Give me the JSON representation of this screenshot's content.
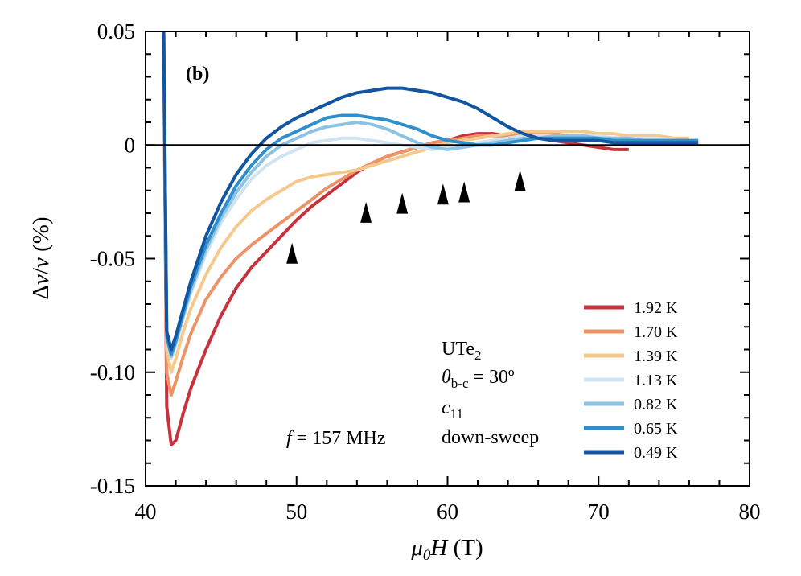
{
  "chart_data": {
    "type": "line",
    "panel_label": "(b)",
    "xlabel": "μ₀H (T)",
    "ylabel": "Δv/v (%)",
    "xlim": [
      40,
      80
    ],
    "ylim": [
      -0.15,
      0.05
    ],
    "x_ticks": [
      40,
      50,
      60,
      70,
      80
    ],
    "x_tick_labels": [
      "40",
      "50",
      "60",
      "70",
      "80"
    ],
    "y_ticks": [
      0.05,
      0,
      -0.05,
      -0.1,
      -0.15
    ],
    "y_tick_labels": [
      "0.05",
      "0",
      "-0.05",
      "-0.10",
      "-0.15"
    ],
    "zero_line": true,
    "grid": false,
    "legend_position": "lower-right",
    "annotations": {
      "material": "UTe",
      "material_sub": "2",
      "theta_symbol": "θ",
      "theta_sub": "b-c",
      "theta_value": " = 30º",
      "mode_symbol": "c",
      "mode_sub": "11",
      "sweep": "down-sweep",
      "freq_symbol": "f",
      "freq_value": " = 157 MHz"
    },
    "arrow_markers": [
      {
        "x": 49.7,
        "y": -0.043
      },
      {
        "x": 54.6,
        "y": -0.025
      },
      {
        "x": 57.0,
        "y": -0.021
      },
      {
        "x": 59.7,
        "y": -0.017
      },
      {
        "x": 61.1,
        "y": -0.016
      },
      {
        "x": 64.8,
        "y": -0.011
      }
    ],
    "series": [
      {
        "name": "1.92 K",
        "color": "#c8323c",
        "x": [
          41.2,
          41.4,
          41.7,
          42.0,
          42.5,
          43.0,
          44.0,
          45.0,
          46.0,
          47.0,
          48.0,
          49.0,
          50.0,
          51.0,
          52.0,
          53.0,
          54.0,
          55.0,
          56.0,
          57.0,
          58.0,
          59.0,
          60.0,
          61.0,
          62.0,
          63.0,
          64.0,
          65.0,
          66.0,
          67.0,
          68.0,
          69.0,
          70.0,
          71.0,
          72.0
        ],
        "y": [
          0.05,
          -0.115,
          -0.132,
          -0.13,
          -0.118,
          -0.107,
          -0.09,
          -0.075,
          -0.063,
          -0.054,
          -0.047,
          -0.04,
          -0.033,
          -0.027,
          -0.022,
          -0.017,
          -0.012,
          -0.008,
          -0.005,
          -0.003,
          -0.001,
          0.001,
          0.002,
          0.004,
          0.005,
          0.005,
          0.004,
          0.003,
          0.003,
          0.002,
          0.001,
          0.0,
          -0.001,
          -0.002,
          -0.002
        ]
      },
      {
        "name": "1.70 K",
        "color": "#ec9468",
        "x": [
          41.2,
          41.4,
          41.7,
          42.0,
          42.5,
          43.0,
          44.0,
          45.0,
          46.0,
          47.0,
          48.0,
          49.0,
          50.0,
          51.0,
          52.0,
          53.0,
          54.0,
          55.0,
          56.0,
          57.0,
          58.0,
          59.0,
          60.0,
          61.0,
          62.0,
          63.0,
          64.0,
          65.0,
          66.0,
          67.0,
          68.0,
          69.0,
          70.0,
          71.0,
          72.0
        ],
        "y": [
          0.05,
          -0.1,
          -0.11,
          -0.104,
          -0.093,
          -0.083,
          -0.068,
          -0.058,
          -0.05,
          -0.044,
          -0.039,
          -0.034,
          -0.029,
          -0.024,
          -0.019,
          -0.015,
          -0.011,
          -0.008,
          -0.005,
          -0.003,
          -0.001,
          0.001,
          0.002,
          0.003,
          0.004,
          0.004,
          0.004,
          0.005,
          0.005,
          0.005,
          0.004,
          0.004,
          0.003,
          0.002,
          0.002
        ]
      },
      {
        "name": "1.39 K",
        "color": "#f5c98d",
        "x": [
          41.2,
          41.4,
          41.7,
          42.0,
          42.5,
          43.0,
          44.0,
          45.0,
          46.0,
          47.0,
          48.0,
          49.0,
          50.0,
          51.0,
          52.0,
          53.0,
          54.0,
          55.0,
          56.0,
          57.0,
          58.0,
          59.0,
          60.0,
          61.0,
          62.0,
          63.0,
          64.0,
          65.0,
          66.0,
          67.0,
          68.0,
          69.0,
          70.0,
          71.0,
          72.0,
          73.0,
          74.0,
          75.0,
          76.0
        ],
        "y": [
          0.05,
          -0.09,
          -0.1,
          -0.094,
          -0.082,
          -0.072,
          -0.057,
          -0.045,
          -0.036,
          -0.029,
          -0.024,
          -0.02,
          -0.016,
          -0.014,
          -0.013,
          -0.012,
          -0.011,
          -0.009,
          -0.007,
          -0.005,
          -0.003,
          -0.001,
          0.001,
          0.002,
          0.003,
          0.004,
          0.005,
          0.006,
          0.006,
          0.006,
          0.006,
          0.006,
          0.005,
          0.005,
          0.004,
          0.004,
          0.004,
          0.003,
          0.003
        ]
      },
      {
        "name": "1.13 K",
        "color": "#cfe3f0",
        "x": [
          41.2,
          41.4,
          41.7,
          42.0,
          42.5,
          43.0,
          44.0,
          45.0,
          46.0,
          47.0,
          48.0,
          49.0,
          50.0,
          51.0,
          52.0,
          53.0,
          54.0,
          55.0,
          56.0,
          57.0,
          58.0,
          59.0,
          60.0,
          61.0,
          62.0,
          63.0,
          64.0,
          65.0,
          66.0,
          67.0,
          68.0,
          69.0,
          70.0,
          71.0,
          72.0,
          73.0,
          74.0,
          75.0,
          76.0
        ],
        "y": [
          0.05,
          -0.085,
          -0.094,
          -0.088,
          -0.076,
          -0.065,
          -0.048,
          -0.034,
          -0.024,
          -0.015,
          -0.009,
          -0.005,
          -0.002,
          0.001,
          0.002,
          0.003,
          0.003,
          0.002,
          0.001,
          0.0,
          -0.001,
          -0.002,
          -0.001,
          0.0,
          0.001,
          0.002,
          0.003,
          0.004,
          0.004,
          0.004,
          0.004,
          0.004,
          0.004,
          0.003,
          0.003,
          0.003,
          0.003,
          0.002,
          0.002
        ]
      },
      {
        "name": "0.82 K",
        "color": "#8cc3e4",
        "x": [
          41.2,
          41.4,
          41.7,
          42.0,
          42.5,
          43.0,
          44.0,
          45.0,
          46.0,
          47.0,
          48.0,
          49.0,
          50.0,
          51.0,
          52.0,
          53.0,
          54.0,
          55.0,
          56.0,
          57.0,
          58.0,
          59.0,
          60.0,
          61.0,
          62.0,
          63.0,
          64.0,
          65.0,
          66.0,
          67.0,
          68.0,
          69.0,
          70.0,
          71.0,
          72.0,
          73.0,
          74.0,
          75.0,
          76.0,
          76.6
        ],
        "y": [
          0.05,
          -0.085,
          -0.093,
          -0.087,
          -0.075,
          -0.064,
          -0.046,
          -0.032,
          -0.021,
          -0.012,
          -0.005,
          0.0,
          0.003,
          0.006,
          0.008,
          0.009,
          0.01,
          0.009,
          0.007,
          0.004,
          0.001,
          -0.001,
          -0.002,
          -0.001,
          0.0,
          0.001,
          0.002,
          0.003,
          0.003,
          0.004,
          0.004,
          0.004,
          0.003,
          0.003,
          0.003,
          0.002,
          0.002,
          0.002,
          0.002,
          0.002
        ]
      },
      {
        "name": "0.65 K",
        "color": "#2e8fcc",
        "x": [
          41.2,
          41.4,
          41.7,
          42.0,
          42.5,
          43.0,
          44.0,
          45.0,
          46.0,
          47.0,
          48.0,
          49.0,
          50.0,
          51.0,
          52.0,
          53.0,
          54.0,
          55.0,
          56.0,
          57.0,
          58.0,
          59.0,
          60.0,
          61.0,
          62.0,
          63.0,
          64.0,
          65.0,
          66.0,
          67.0,
          68.0,
          69.0,
          70.0,
          71.0,
          72.0,
          73.0,
          74.0,
          75.0,
          76.0,
          76.6
        ],
        "y": [
          0.05,
          -0.084,
          -0.092,
          -0.086,
          -0.074,
          -0.062,
          -0.044,
          -0.03,
          -0.018,
          -0.009,
          -0.002,
          0.003,
          0.006,
          0.009,
          0.012,
          0.013,
          0.013,
          0.012,
          0.011,
          0.009,
          0.007,
          0.004,
          0.002,
          0.001,
          0.0,
          0.0,
          0.001,
          0.002,
          0.003,
          0.003,
          0.003,
          0.003,
          0.003,
          0.002,
          0.002,
          0.002,
          0.002,
          0.002,
          0.002,
          0.002
        ]
      },
      {
        "name": "0.49 K",
        "color": "#1255a0",
        "x": [
          41.2,
          41.4,
          41.7,
          42.0,
          42.5,
          43.0,
          44.0,
          45.0,
          46.0,
          47.0,
          48.0,
          49.0,
          50.0,
          51.0,
          52.0,
          53.0,
          54.0,
          55.0,
          56.0,
          57.0,
          58.0,
          59.0,
          60.0,
          61.0,
          62.0,
          63.0,
          64.0,
          65.0,
          66.0,
          67.0,
          68.0,
          69.0,
          70.0,
          71.0,
          72.0,
          73.0,
          74.0,
          75.0,
          76.0,
          76.6
        ],
        "y": [
          0.05,
          -0.082,
          -0.09,
          -0.084,
          -0.072,
          -0.06,
          -0.04,
          -0.025,
          -0.013,
          -0.004,
          0.003,
          0.008,
          0.012,
          0.015,
          0.018,
          0.021,
          0.023,
          0.024,
          0.025,
          0.025,
          0.024,
          0.023,
          0.021,
          0.019,
          0.016,
          0.012,
          0.008,
          0.005,
          0.003,
          0.002,
          0.002,
          0.002,
          0.002,
          0.001,
          0.001,
          0.001,
          0.001,
          0.001,
          0.001,
          0.001
        ]
      }
    ]
  }
}
